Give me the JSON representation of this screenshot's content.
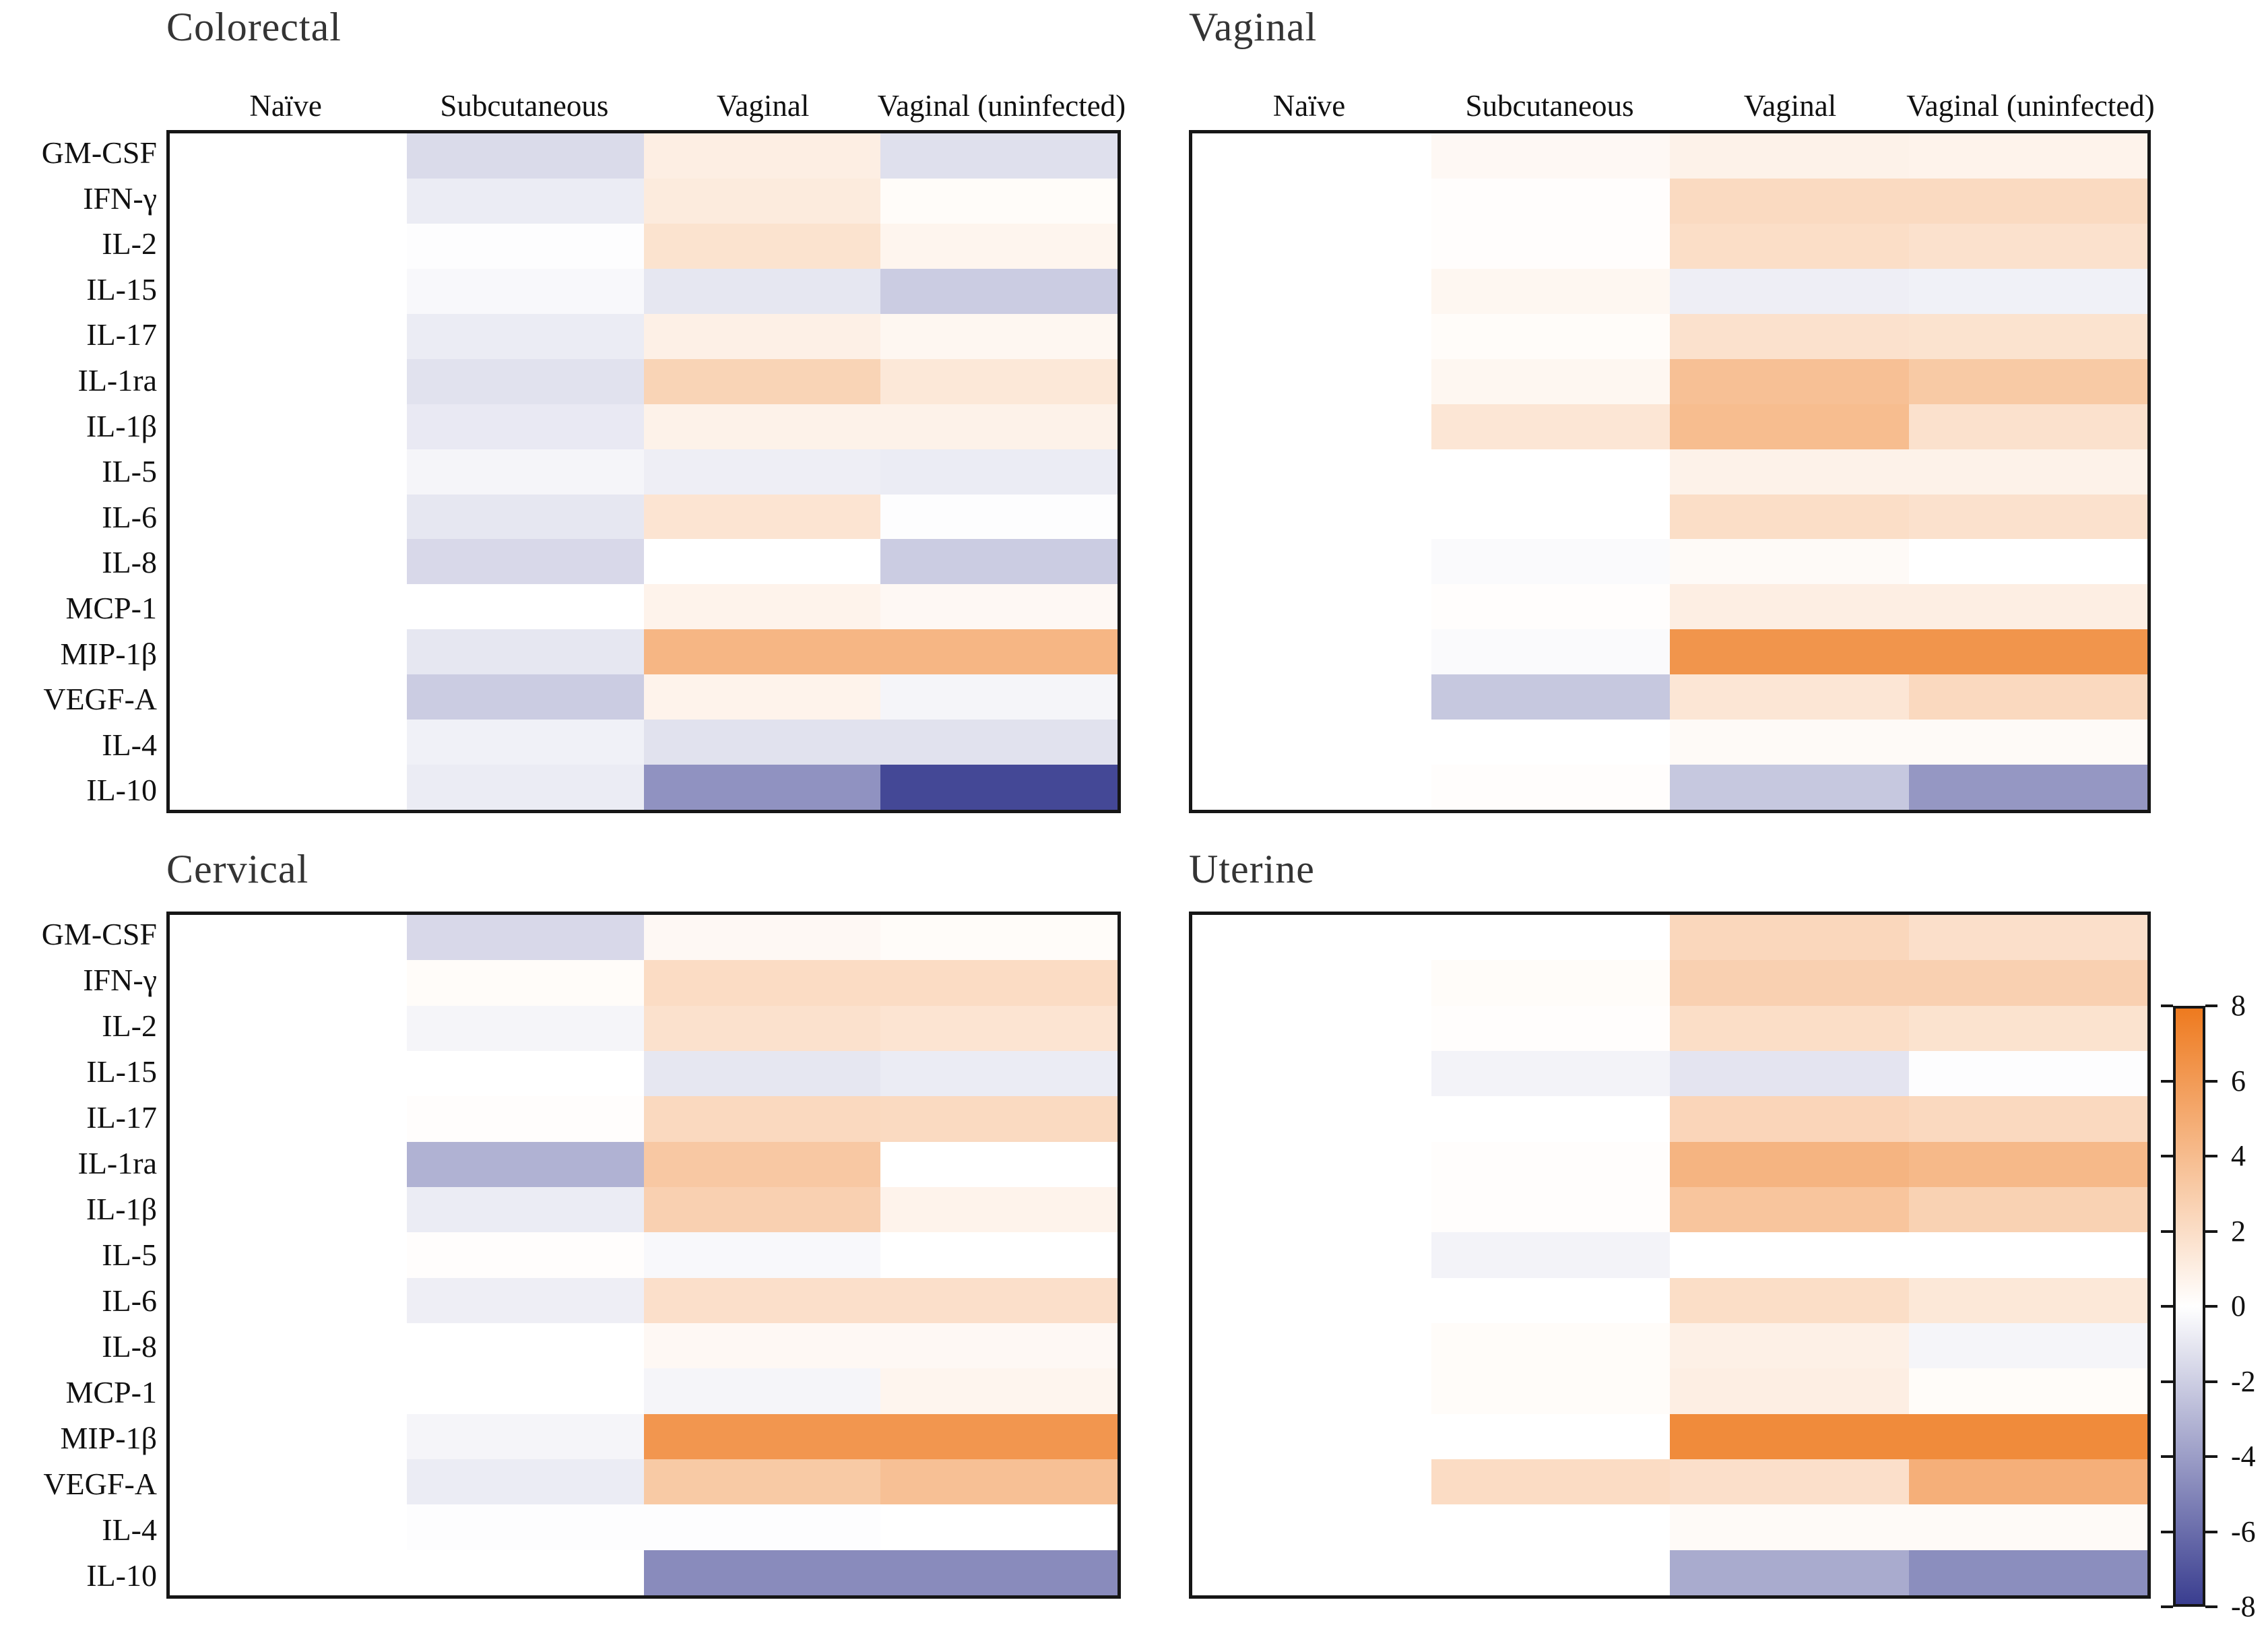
{
  "chart_data": {
    "type": "heatmap",
    "layout_note": "Four diverging heatmap panels sharing row labels on the left and column headers on top; shared colorbar at right",
    "columns": [
      "Naïve",
      "Subcutaneous",
      "Vaginal",
      "Vaginal (uninfected)"
    ],
    "rows": [
      "GM-CSF",
      "IFN-γ",
      "IL-2",
      "IL-15",
      "IL-17",
      "IL-1ra",
      "IL-1β",
      "IL-5",
      "IL-6",
      "IL-8",
      "MCP-1",
      "MIP-1β",
      "VEGF-A",
      "IL-4",
      "IL-10"
    ],
    "panels": [
      {
        "title": "Colorectal",
        "values": [
          [
            0,
            -1.5,
            1.0,
            -1.3
          ],
          [
            0,
            -0.8,
            1.2,
            0.2
          ],
          [
            0,
            -0.1,
            1.7,
            0.6
          ],
          [
            0,
            -0.3,
            -1.0,
            -2.1
          ],
          [
            0,
            -0.8,
            0.9,
            0.5
          ],
          [
            0,
            -1.2,
            2.6,
            1.4
          ],
          [
            0,
            -0.9,
            0.8,
            0.8
          ],
          [
            0,
            -0.4,
            -0.7,
            -0.8
          ],
          [
            0,
            -1.0,
            1.6,
            -0.1
          ],
          [
            0,
            -1.6,
            0.0,
            -2.1
          ],
          [
            0,
            0.0,
            0.7,
            0.4
          ],
          [
            0,
            -1.0,
            4.4,
            4.4
          ],
          [
            0,
            -2.1,
            0.7,
            -0.4
          ],
          [
            0,
            -0.6,
            -1.2,
            -1.2
          ],
          [
            0,
            -0.8,
            -4.5,
            -7.6
          ]
        ]
      },
      {
        "title": "Vaginal",
        "values": [
          [
            0,
            0.4,
            0.8,
            0.7
          ],
          [
            0,
            0.1,
            2.2,
            2.2
          ],
          [
            0,
            0.1,
            2.0,
            1.8
          ],
          [
            0,
            0.5,
            -0.7,
            -0.6
          ],
          [
            0,
            0.2,
            1.8,
            1.7
          ],
          [
            0,
            0.5,
            3.8,
            3.2
          ],
          [
            0,
            1.5,
            4.0,
            1.8
          ],
          [
            0,
            0.0,
            0.8,
            0.8
          ],
          [
            0,
            0.0,
            2.0,
            1.8
          ],
          [
            0,
            -0.2,
            0.3,
            0.0
          ],
          [
            0,
            0.1,
            1.0,
            1.0
          ],
          [
            0,
            -0.2,
            6.4,
            6.4
          ],
          [
            0,
            -2.3,
            1.5,
            2.3
          ],
          [
            0,
            0.0,
            0.3,
            0.3
          ],
          [
            0,
            0.1,
            -2.3,
            -4.3
          ]
        ]
      },
      {
        "title": "Cervical",
        "values": [
          [
            0,
            -1.6,
            0.4,
            0.2
          ],
          [
            0,
            0.2,
            2.1,
            2.1
          ],
          [
            0,
            -0.4,
            1.8,
            1.6
          ],
          [
            0,
            0.0,
            -1.0,
            -0.8
          ],
          [
            0,
            0.1,
            2.3,
            2.2
          ],
          [
            0,
            -3.2,
            3.3,
            0.0
          ],
          [
            0,
            -0.8,
            2.8,
            0.7
          ],
          [
            0,
            0.1,
            -0.3,
            0.0
          ],
          [
            0,
            -0.7,
            1.9,
            1.9
          ],
          [
            0,
            0.0,
            0.4,
            0.4
          ],
          [
            0,
            0.0,
            -0.4,
            0.6
          ],
          [
            0,
            -0.4,
            6.3,
            6.3
          ],
          [
            0,
            -0.8,
            3.2,
            3.8
          ],
          [
            0,
            -0.1,
            -0.1,
            0.0
          ],
          [
            0,
            0.0,
            -4.8,
            -4.8
          ]
        ]
      },
      {
        "title": "Uterine",
        "values": [
          [
            0,
            0.0,
            2.4,
            1.9
          ],
          [
            0,
            0.2,
            2.8,
            2.8
          ],
          [
            0,
            0.1,
            2.0,
            1.7
          ],
          [
            0,
            -0.5,
            -1.1,
            -0.1
          ],
          [
            0,
            0.0,
            2.5,
            2.3
          ],
          [
            0,
            0.1,
            4.5,
            4.2
          ],
          [
            0,
            0.1,
            3.5,
            2.7
          ],
          [
            0,
            -0.5,
            0.0,
            0.0
          ],
          [
            0,
            0.0,
            2.0,
            1.4
          ],
          [
            0,
            0.2,
            0.9,
            -0.4
          ],
          [
            0,
            0.2,
            1.0,
            0.2
          ],
          [
            0,
            0.0,
            7.0,
            7.0
          ],
          [
            0,
            2.1,
            1.9,
            4.8
          ],
          [
            0,
            0.0,
            0.3,
            0.3
          ],
          [
            0,
            0.0,
            -3.5,
            -4.7
          ]
        ]
      }
    ],
    "colorbar": {
      "min": -8,
      "max": 8,
      "ticks": [
        "8",
        "6",
        "4",
        "2",
        "0",
        "-2",
        "-4",
        "-6",
        "-8"
      ],
      "positive_color": "#ee7a1f",
      "zero_color": "#ffffff",
      "negative_color": "#3a3e90"
    }
  }
}
